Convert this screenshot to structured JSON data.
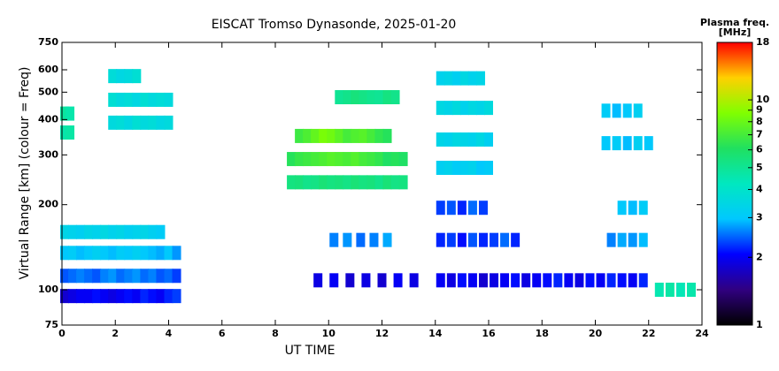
{
  "chart_data": {
    "type": "scatter",
    "title": "EISCAT Tromso Dynasonde, 2025-01-20",
    "x_label": "UT TIME",
    "y_label": "Virtual Range [km] (colour = Freq)",
    "colorbar_title": "Plasma freq.",
    "colorbar_unit": "[MHz]",
    "xlim": [
      0,
      24
    ],
    "xticks": [
      0,
      2,
      4,
      6,
      8,
      10,
      12,
      14,
      16,
      18,
      20,
      22,
      24
    ],
    "ylim": [
      75,
      750
    ],
    "yticks": [
      75,
      100,
      200,
      300,
      400,
      500,
      600,
      750
    ],
    "ylog": true,
    "zlim": [
      1,
      18
    ],
    "zticks": [
      1,
      2,
      3,
      4,
      5,
      6,
      7,
      8,
      9,
      10,
      18
    ],
    "zlog": true,
    "colormap": [
      "#000000",
      "#300080",
      "#0000ff",
      "#00c8ff",
      "#00e8c0",
      "#20e060",
      "#80ff00",
      "#ffd000",
      "#ff0000"
    ],
    "x": [
      0.1,
      0.4,
      0.7,
      1.0,
      1.3,
      1.6,
      1.9,
      2.2,
      2.5,
      2.8,
      3.1,
      3.4,
      3.7,
      4.0,
      4.3,
      0.1,
      0.4,
      0.7,
      1.0,
      1.3,
      1.6,
      1.9,
      2.2,
      2.5,
      2.8,
      3.1,
      3.4,
      3.7,
      4.0,
      4.3,
      0.1,
      0.4,
      0.7,
      1.0,
      1.3,
      1.6,
      1.9,
      2.2,
      2.5,
      2.8,
      3.1,
      3.4,
      3.7,
      4.0,
      4.3,
      0.1,
      0.4,
      0.7,
      1.0,
      1.3,
      1.6,
      1.9,
      2.2,
      2.5,
      2.8,
      3.1,
      3.4,
      3.7,
      0.1,
      0.3,
      0.1,
      0.3,
      1.9,
      2.2,
      2.5,
      2.8,
      3.1,
      3.4,
      3.7,
      4.0,
      1.9,
      2.2,
      2.5,
      2.8,
      3.1,
      3.4,
      3.7,
      4.0,
      1.9,
      2.2,
      2.5,
      2.8,
      8.6,
      8.9,
      9.2,
      9.5,
      9.8,
      10.1,
      10.4,
      10.7,
      11.0,
      11.3,
      11.6,
      11.9,
      12.2,
      12.5,
      12.8,
      8.6,
      8.9,
      9.2,
      9.5,
      9.8,
      10.1,
      10.4,
      10.7,
      11.0,
      11.3,
      11.6,
      11.9,
      12.2,
      12.5,
      12.8,
      8.9,
      9.2,
      9.5,
      9.8,
      10.1,
      10.4,
      10.7,
      11.0,
      11.3,
      11.6,
      11.9,
      12.2,
      10.4,
      10.7,
      11.0,
      11.3,
      11.6,
      11.9,
      12.2,
      12.5,
      9.6,
      10.2,
      10.8,
      11.4,
      12.0,
      12.6,
      13.2,
      10.2,
      10.7,
      11.2,
      11.7,
      12.2,
      14.2,
      14.5,
      14.8,
      15.1,
      15.4,
      15.7,
      16.0,
      14.2,
      14.5,
      14.8,
      15.1,
      15.4,
      15.7,
      16.0,
      14.2,
      14.5,
      14.8,
      15.1,
      15.4,
      15.7,
      16.0,
      14.2,
      14.5,
      14.8,
      15.1,
      15.4,
      15.7,
      14.2,
      14.6,
      15.0,
      15.4,
      15.8,
      16.2,
      16.6,
      17.0,
      17.4,
      17.8,
      18.2,
      18.6,
      19.0,
      19.4,
      19.8,
      20.2,
      20.6,
      21.0,
      21.4,
      21.8,
      14.2,
      14.6,
      15.0,
      15.4,
      15.8,
      16.2,
      16.6,
      17.0,
      20.6,
      21.0,
      21.4,
      21.8,
      14.2,
      14.6,
      15.0,
      15.4,
      15.8,
      21.0,
      21.4,
      21.8,
      20.4,
      20.8,
      21.2,
      21.6,
      22.0,
      20.4,
      20.8,
      21.2,
      21.6,
      22.4,
      22.8,
      23.2,
      23.6
    ],
    "y": [
      95,
      95,
      95,
      95,
      95,
      95,
      95,
      95,
      95,
      95,
      95,
      95,
      95,
      95,
      95,
      112,
      112,
      112,
      112,
      112,
      112,
      112,
      112,
      112,
      112,
      112,
      112,
      112,
      112,
      112,
      135,
      135,
      135,
      135,
      135,
      135,
      135,
      135,
      135,
      135,
      135,
      135,
      135,
      135,
      135,
      160,
      160,
      160,
      160,
      160,
      160,
      160,
      160,
      160,
      160,
      160,
      160,
      160,
      360,
      360,
      420,
      420,
      390,
      390,
      390,
      390,
      390,
      390,
      390,
      390,
      470,
      470,
      470,
      470,
      470,
      470,
      470,
      470,
      570,
      570,
      570,
      570,
      240,
      240,
      240,
      240,
      240,
      240,
      240,
      240,
      240,
      240,
      240,
      240,
      240,
      240,
      240,
      290,
      290,
      290,
      290,
      290,
      290,
      290,
      290,
      290,
      290,
      290,
      290,
      290,
      290,
      290,
      350,
      350,
      350,
      350,
      350,
      350,
      350,
      350,
      350,
      350,
      350,
      350,
      480,
      480,
      480,
      480,
      480,
      480,
      480,
      480,
      108,
      108,
      108,
      108,
      108,
      108,
      108,
      150,
      150,
      150,
      150,
      150,
      270,
      270,
      270,
      270,
      270,
      270,
      270,
      340,
      340,
      340,
      340,
      340,
      340,
      340,
      440,
      440,
      440,
      440,
      440,
      440,
      440,
      560,
      560,
      560,
      560,
      560,
      560,
      108,
      108,
      108,
      108,
      108,
      108,
      108,
      108,
      108,
      108,
      108,
      108,
      108,
      108,
      108,
      108,
      108,
      108,
      108,
      108,
      150,
      150,
      150,
      150,
      150,
      150,
      150,
      150,
      150,
      150,
      150,
      150,
      195,
      195,
      195,
      195,
      195,
      195,
      195,
      195,
      330,
      330,
      330,
      330,
      330,
      430,
      430,
      430,
      430,
      100,
      100,
      100,
      100
    ],
    "z": [
      1.8,
      1.9,
      2.0,
      2.0,
      2.1,
      2.0,
      1.9,
      2.0,
      2.1,
      2.0,
      2.2,
      2.1,
      2.0,
      2.2,
      2.3,
      2.4,
      2.5,
      2.6,
      2.5,
      2.4,
      2.6,
      2.7,
      2.5,
      2.6,
      2.7,
      2.5,
      2.6,
      2.4,
      2.5,
      2.3,
      3.0,
      3.1,
      2.9,
      3.0,
      3.2,
      3.0,
      2.9,
      3.1,
      3.0,
      3.2,
      3.0,
      2.9,
      2.8,
      3.0,
      2.7,
      3.4,
      3.3,
      3.2,
      3.4,
      3.3,
      3.5,
      3.3,
      3.4,
      3.2,
      3.3,
      3.4,
      3.2,
      3.1,
      4.6,
      4.7,
      4.8,
      4.6,
      3.6,
      3.7,
      3.5,
      3.8,
      3.6,
      3.7,
      3.5,
      3.6,
      3.8,
      3.6,
      3.7,
      3.5,
      3.8,
      3.6,
      3.7,
      3.6,
      3.7,
      3.5,
      3.6,
      3.8,
      5.4,
      5.5,
      5.2,
      5.3,
      5.6,
      5.4,
      5.5,
      5.3,
      5.6,
      5.4,
      5.5,
      5.2,
      5.6,
      5.3,
      5.4,
      6.2,
      6.6,
      6.8,
      7.0,
      7.2,
      7.5,
      7.3,
      7.1,
      7.4,
      7.0,
      6.8,
      6.5,
      6.0,
      6.2,
      6.0,
      6.8,
      7.2,
      7.8,
      8.5,
      8.2,
      7.6,
      7.0,
      7.3,
      7.5,
      7.0,
      6.5,
      6.2,
      5.0,
      5.2,
      5.5,
      5.3,
      5.1,
      5.0,
      5.4,
      5.2,
      1.9,
      2.0,
      1.8,
      1.9,
      1.8,
      2.0,
      1.9,
      2.6,
      2.7,
      2.5,
      2.6,
      2.8,
      3.2,
      3.3,
      3.1,
      3.2,
      3.3,
      3.0,
      3.1,
      3.4,
      3.3,
      3.5,
      3.4,
      3.3,
      3.5,
      3.2,
      3.5,
      3.4,
      3.6,
      3.3,
      3.5,
      3.4,
      3.6,
      3.3,
      3.4,
      3.2,
      3.5,
      3.3,
      3.4,
      2.0,
      1.9,
      2.1,
      2.0,
      1.8,
      1.9,
      2.0,
      2.1,
      1.9,
      2.0,
      2.1,
      2.2,
      2.0,
      1.9,
      2.1,
      2.0,
      2.2,
      2.1,
      2.0,
      2.2,
      2.2,
      2.3,
      2.1,
      2.4,
      2.2,
      2.3,
      2.5,
      2.2,
      2.6,
      2.8,
      2.7,
      2.9,
      2.3,
      2.4,
      2.2,
      2.5,
      2.3,
      3.0,
      2.9,
      3.1,
      3.0,
      3.1,
      2.9,
      3.2,
      3.0,
      3.1,
      2.9,
      3.0,
      3.2,
      4.5,
      4.7,
      4.4,
      4.6
    ]
  }
}
